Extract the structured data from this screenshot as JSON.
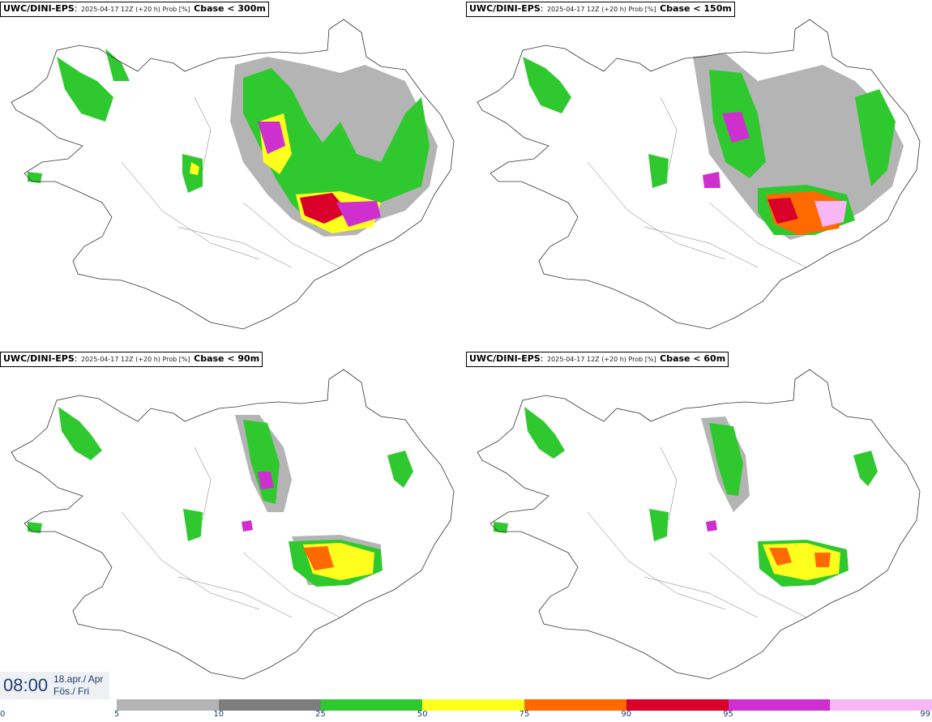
{
  "panels": [
    {
      "model": "UWC/DINI-EPS",
      "meta": "2025-04-17 12Z (+20 h) Prob [%]",
      "variable": "Cbase < 300m"
    },
    {
      "model": "UWC/DINI-EPS",
      "meta": "2025-04-17 12Z (+20 h) Prob [%]",
      "variable": "Cbase < 150m"
    },
    {
      "model": "UWC/DINI-EPS",
      "meta": "2025-04-17 12Z (+20 h) Prob [%]",
      "variable": "Cbase < 90m"
    },
    {
      "model": "UWC/DINI-EPS",
      "meta": "2025-04-17 12Z (+20 h) Prob [%]",
      "variable": "Cbase < 60m"
    }
  ],
  "valid_time": {
    "clock": "08:00",
    "date_line": "18.apr./ Apr",
    "day_line": "Fös./ Fri"
  },
  "colorbar": {
    "ticks": [
      "0",
      "5",
      "10",
      "25",
      "50",
      "75",
      "90",
      "95",
      "99"
    ],
    "colors": [
      "#b4b4b4",
      "#7d7d7d",
      "#2fc92f",
      "#ffff1e",
      "#ff6a00",
      "#d9002a",
      "#cf2fcf",
      "#f7b6f4"
    ]
  }
}
